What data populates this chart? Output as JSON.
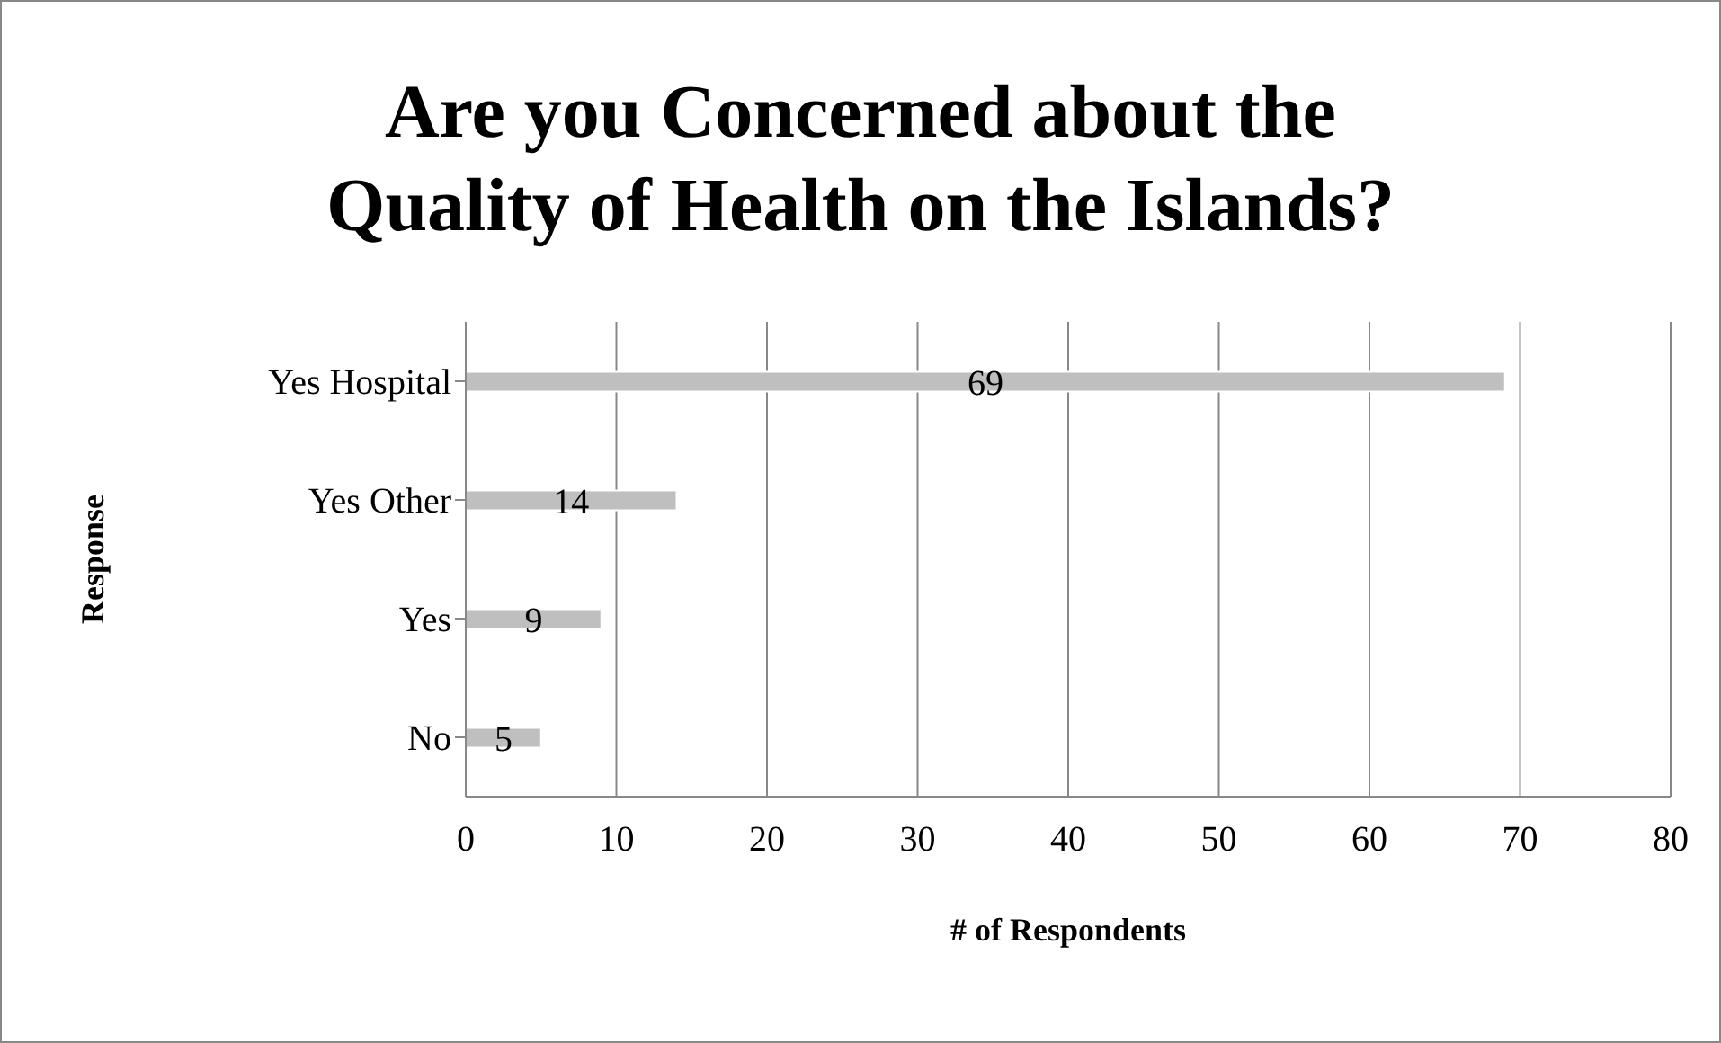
{
  "chart_data": {
    "type": "bar",
    "orientation": "horizontal",
    "title": "Are you Concerned about the Quality of Health on the Islands?",
    "xlabel": "# of Respondents",
    "ylabel": "Response",
    "categories": [
      "Yes Hospital",
      "Yes Other",
      "Yes",
      "No"
    ],
    "values": [
      69,
      14,
      9,
      5
    ],
    "color": "#bfbfbf",
    "xlim": [
      0,
      80
    ],
    "xticks": [
      0,
      10,
      20,
      30,
      40,
      50,
      60,
      70,
      80
    ],
    "grid": "x",
    "data_labels": true
  }
}
